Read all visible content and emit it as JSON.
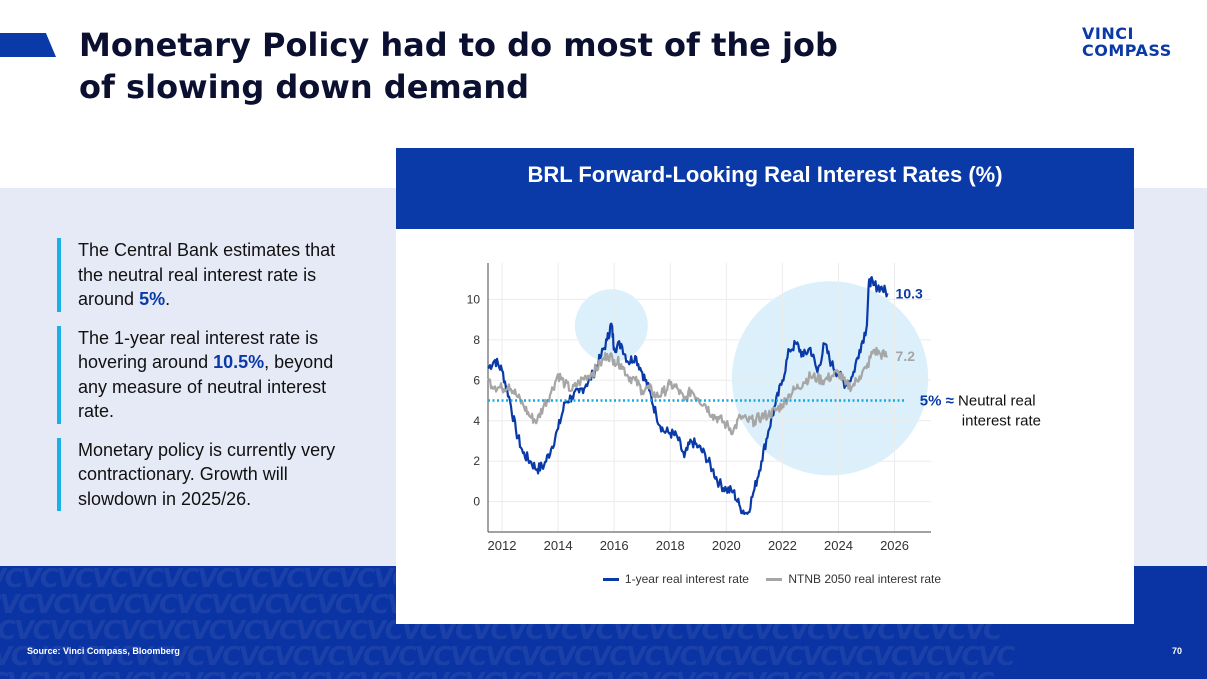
{
  "slide": {
    "title_line1": "Monetary Policy had to do most of the job",
    "title_line2": "of slowing down demand",
    "logo_line1": "VINCI",
    "logo_line2": "COMPASS",
    "source": "Source: Vinci Compass, Bloomberg",
    "page_number": "70",
    "footer_pattern": "VCVCVCVCVCVCVCVCVCVCVCVCVCVCVCVCVCVCVCVCVCVCVCVCVCVCVCVCVC"
  },
  "bullets": [
    {
      "text_before": "The Central Bank estimates that the neutral real interest rate is around ",
      "highlight": "5%",
      "text_after": "."
    },
    {
      "text_before": "The 1-year real interest rate is hovering around ",
      "highlight": "10.5%",
      "text_after": ", beyond any measure of neutral interest rate."
    },
    {
      "text_before": "Monetary policy is currently very contractionary. Growth will slowdown in 2025/26.",
      "highlight": "",
      "text_after": ""
    }
  ],
  "colors": {
    "brand_blue": "#0a3aa8",
    "series_1yr": "#0a3aa8",
    "series_ntnb": "#a6a6a6",
    "neutral_line": "#18a8e0",
    "highlight_circle": "#dbf0fa"
  },
  "chart_data": {
    "type": "line",
    "title": "BRL Forward-Looking Real Interest Rates (%)",
    "xlim": [
      2011.5,
      2027.3
    ],
    "ylim": [
      -1.5,
      11.8
    ],
    "x_ticks": [
      2012,
      2014,
      2016,
      2018,
      2020,
      2022,
      2024,
      2026
    ],
    "y_ticks": [
      0,
      2,
      4,
      6,
      8,
      10
    ],
    "x_tick_labels": [
      "2012",
      "2014",
      "2016",
      "2018",
      "2020",
      "2022",
      "2024",
      "2026"
    ],
    "y_tick_labels": [
      "0",
      "2",
      "4",
      "6",
      "8",
      "10"
    ],
    "grid": true,
    "series": [
      {
        "name": "1-year real interest rate",
        "end_label": "10.3",
        "x": [
          2011.5,
          2011.75,
          2012.0,
          2012.25,
          2012.5,
          2012.75,
          2013.0,
          2013.25,
          2013.5,
          2013.75,
          2014.0,
          2014.25,
          2014.5,
          2014.75,
          2015.0,
          2015.25,
          2015.5,
          2015.75,
          2015.9,
          2016.0,
          2016.25,
          2016.5,
          2016.75,
          2017.0,
          2017.25,
          2017.5,
          2017.75,
          2018.0,
          2018.25,
          2018.5,
          2018.75,
          2019.0,
          2019.25,
          2019.5,
          2019.75,
          2020.0,
          2020.25,
          2020.5,
          2020.75,
          2021.0,
          2021.25,
          2021.5,
          2021.75,
          2022.0,
          2022.25,
          2022.5,
          2022.75,
          2023.0,
          2023.25,
          2023.5,
          2023.75,
          2024.0,
          2024.25,
          2024.5,
          2024.75,
          2025.0,
          2025.1,
          2025.25,
          2025.5,
          2025.75
        ],
        "values": [
          6.6,
          7.0,
          6.5,
          5.2,
          3.5,
          2.4,
          2.0,
          1.6,
          1.8,
          2.6,
          3.6,
          4.9,
          5.2,
          5.4,
          5.8,
          6.3,
          7.1,
          8.0,
          8.8,
          7.6,
          7.8,
          6.9,
          7.2,
          6.4,
          5.5,
          4.3,
          3.5,
          3.4,
          3.2,
          2.2,
          3.0,
          2.7,
          2.3,
          1.6,
          0.9,
          0.6,
          0.5,
          -0.3,
          -0.6,
          0.6,
          2.0,
          3.5,
          4.8,
          6.0,
          7.5,
          7.8,
          7.2,
          7.6,
          6.4,
          7.8,
          6.8,
          6.3,
          5.8,
          6.2,
          7.5,
          8.6,
          11.0,
          10.7,
          10.6,
          10.3
        ]
      },
      {
        "name": "NTNB 2050 real interest rate",
        "end_label": "7.2",
        "x": [
          2011.5,
          2011.75,
          2012.0,
          2012.25,
          2012.5,
          2012.75,
          2013.0,
          2013.25,
          2013.5,
          2013.75,
          2014.0,
          2014.25,
          2014.5,
          2014.75,
          2015.0,
          2015.25,
          2015.5,
          2015.75,
          2016.0,
          2016.25,
          2016.5,
          2016.75,
          2017.0,
          2017.25,
          2017.5,
          2017.75,
          2018.0,
          2018.25,
          2018.5,
          2018.75,
          2019.0,
          2019.25,
          2019.5,
          2019.75,
          2020.0,
          2020.25,
          2020.5,
          2020.75,
          2021.0,
          2021.25,
          2021.5,
          2021.75,
          2022.0,
          2022.25,
          2022.5,
          2022.75,
          2023.0,
          2023.25,
          2023.5,
          2023.75,
          2024.0,
          2024.25,
          2024.5,
          2024.75,
          2025.0,
          2025.25,
          2025.5,
          2025.75
        ],
        "values": [
          6.0,
          5.7,
          5.6,
          5.8,
          5.3,
          4.8,
          4.2,
          4.0,
          4.8,
          5.4,
          6.3,
          5.8,
          5.5,
          5.9,
          6.2,
          6.4,
          6.8,
          7.3,
          7.0,
          6.8,
          6.2,
          6.0,
          5.5,
          5.6,
          5.2,
          5.4,
          5.8,
          5.6,
          5.0,
          5.5,
          5.1,
          4.8,
          4.3,
          4.1,
          3.8,
          3.5,
          4.2,
          4.0,
          4.0,
          4.2,
          4.3,
          4.5,
          4.8,
          5.3,
          5.6,
          5.9,
          6.2,
          6.1,
          6.0,
          6.2,
          6.4,
          5.8,
          5.7,
          6.2,
          6.6,
          7.5,
          7.3,
          7.2
        ]
      }
    ],
    "neutral_rate": {
      "value": 5,
      "label_value": "5%",
      "label_symbol": "≈",
      "label_line1": "Neutral real",
      "label_line2": "interest rate"
    },
    "highlights": [
      {
        "center_x": 2015.9,
        "center_y": 8.7,
        "radius_x": 1.3,
        "radius_y": 1.8
      },
      {
        "center_x": 2023.7,
        "center_y": 6.1,
        "radius_x": 3.5,
        "radius_y": 4.8
      }
    ],
    "legend_position": "bottom"
  }
}
